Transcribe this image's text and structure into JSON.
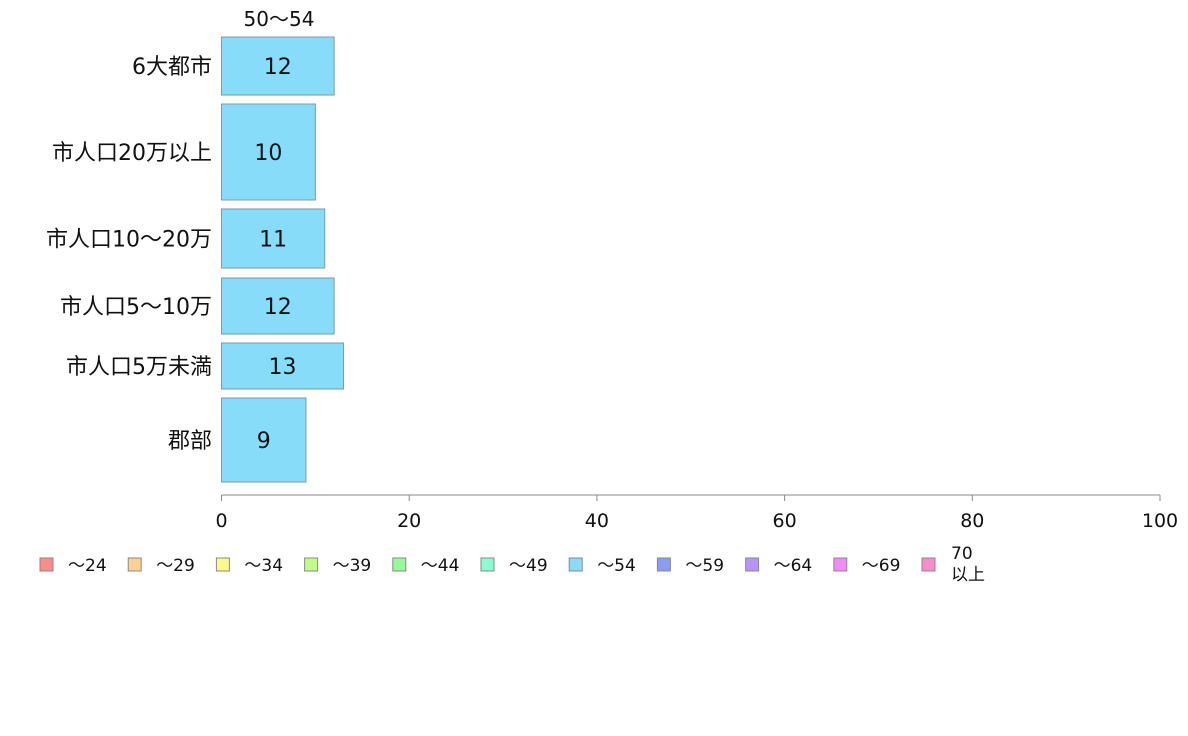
{
  "chart_data": {
    "type": "bar",
    "orientation": "horizontal",
    "series_label": "50〜54",
    "categories": [
      "6大都市",
      "市人口20万以上",
      "市人口10〜20万",
      "市人口5〜10万",
      "市人口5万未満",
      "郡部"
    ],
    "series": [
      {
        "name": "〜54",
        "color": "#87dcfa",
        "values": [
          12,
          10,
          11,
          12,
          13,
          9
        ]
      }
    ],
    "xlim": [
      0,
      100
    ],
    "xticks": [
      "0",
      "20",
      "40",
      "60",
      "80",
      "100"
    ],
    "legend": {
      "placement": "bottom-left",
      "items": [
        {
          "label": "〜24",
          "color": "#fa8c8c"
        },
        {
          "label": "〜29",
          "color": "#fad296"
        },
        {
          "label": "〜34",
          "color": "#fafa8c"
        },
        {
          "label": "〜39",
          "color": "#c3fa8c"
        },
        {
          "label": "〜44",
          "color": "#96fa96"
        },
        {
          "label": "〜49",
          "color": "#8cfad2"
        },
        {
          "label": "〜54",
          "color": "#87dcfa"
        },
        {
          "label": "〜59",
          "color": "#8c9bfa"
        },
        {
          "label": "〜64",
          "color": "#b496fa"
        },
        {
          "label": "〜69",
          "color": "#f08cfa"
        },
        {
          "label": "70\n以上",
          "color": "#fa8cc8"
        }
      ]
    }
  }
}
